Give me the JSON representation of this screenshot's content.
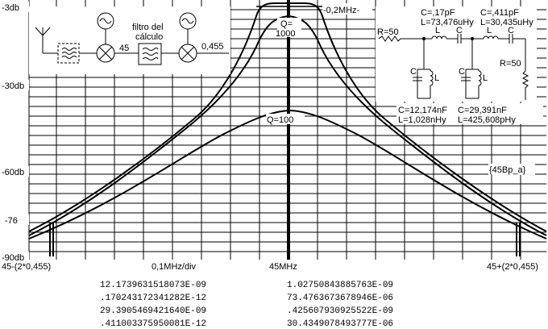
{
  "y_labels": [
    "-3db",
    "-30db",
    "-60db",
    "-76",
    "-90db"
  ],
  "x_labels": {
    "left": "45-(2*0,455)",
    "mid_div": "0,1MHz/div",
    "center": "45MHz",
    "right": "45+(2*0,455)"
  },
  "annotations": {
    "bandwidth": "-0,2MHz-",
    "q_high_line1": "Q=",
    "q_high_line2": "1000",
    "q_low": "Q=100",
    "id_tag": "{45Bp_a}"
  },
  "block_diagram": {
    "freq_45": "45",
    "filter_label_line1": "filtro del",
    "filter_label_line2": "cálculo",
    "out_freq": "0,455"
  },
  "circuit": {
    "r_in": "R=50",
    "r_out": "R=50",
    "c1_top": "C=,17pF",
    "l1_top": "L=73,476uHy",
    "c2_top": "C=,411pF",
    "l2_top": "L=30,435uHy",
    "l_mark": "L",
    "c_mark": "C",
    "c1_bot": "C=12,174nF",
    "l1_bot": "L=1,028nHy",
    "c2_bot": "C=29,391nF",
    "l2_bot": "L=425,608pHy"
  },
  "numbers": [
    [
      "12.1739631518073E-09",
      "1.02750843885763E-09"
    ],
    [
      ".170243172341282E-12",
      "73.4763673678946E-06"
    ],
    [
      "29.3905469421640E-09",
      ".425607930925522E-09"
    ],
    [
      ".411003375950081E-12",
      "30.4349078493777E-06"
    ]
  ],
  "colors": {
    "line": "#000000",
    "grid": "#000000",
    "background": "#ffffff"
  }
}
